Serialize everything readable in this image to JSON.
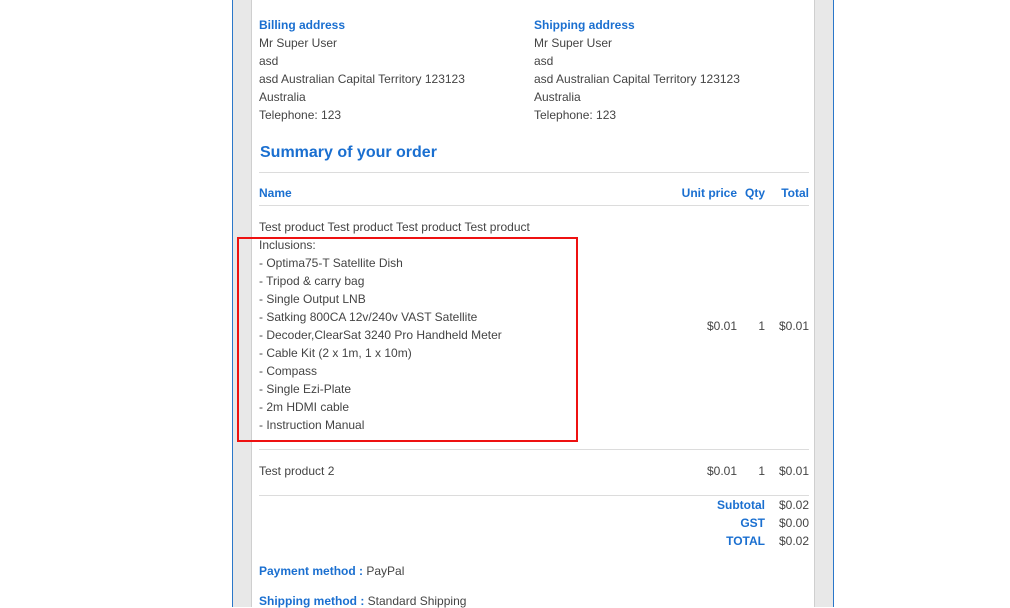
{
  "billing": {
    "title": "Billing address",
    "lines": [
      "Mr Super User",
      "asd",
      "asd Australian Capital Territory 123123",
      "Australia",
      "Telephone: 123"
    ]
  },
  "shipping": {
    "title": "Shipping address",
    "lines": [
      "Mr Super User",
      "asd",
      "asd Australian Capital Territory 123123",
      "Australia",
      "Telephone: 123"
    ]
  },
  "summary": {
    "title": "Summary of your order",
    "columns": {
      "name": "Name",
      "unit_price": "Unit price",
      "qty": "Qty",
      "total": "Total"
    },
    "items": [
      {
        "name": "Test product Test product Test product Test product",
        "details": [
          "Inclusions:",
          "- Optima75-T Satellite Dish",
          "- Tripod & carry bag",
          "- Single Output LNB",
          "- Satking 800CA 12v/240v VAST Satellite",
          "- Decoder,ClearSat 3240 Pro Handheld Meter",
          "- Cable Kit (2 x 1m, 1 x 10m)",
          "- Compass",
          "- Single Ezi-Plate",
          "- 2m HDMI cable",
          "- Instruction Manual"
        ],
        "unit_price": "$0.01",
        "qty": "1",
        "total": "$0.01"
      },
      {
        "name": "Test product 2",
        "unit_price": "$0.01",
        "qty": "1",
        "total": "$0.01"
      }
    ],
    "totals": [
      {
        "label": "Subtotal",
        "value": "$0.02"
      },
      {
        "label": "GST",
        "value": "$0.00"
      },
      {
        "label": "TOTAL",
        "value": "$0.02"
      }
    ]
  },
  "payment": {
    "label": "Payment method :",
    "value": "PayPal"
  },
  "shipping_method": {
    "label": "Shipping method :",
    "value": "Standard Shipping"
  },
  "colors": {
    "accent": "#1a6fd0",
    "highlight": "#ee1111"
  }
}
